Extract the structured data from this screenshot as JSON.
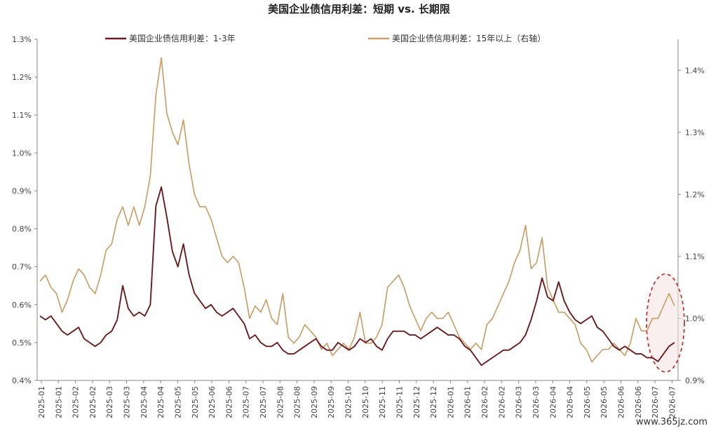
{
  "chart_data": {
    "type": "line",
    "title": "美国企业债信用利差：短期 vs. 长期限",
    "yaxis_left": {
      "min": 0.4,
      "max": 1.3,
      "ticks": [
        "0.4%",
        "0.5%",
        "0.6%",
        "0.7%",
        "0.8%",
        "0.9%",
        "1.0%",
        "1.1%",
        "1.2%",
        "1.3%"
      ]
    },
    "yaxis_right": {
      "min": 0.9,
      "max": 1.45,
      "ticks": [
        "0.9%",
        "1.0%",
        "1.1%",
        "1.2%",
        "1.3%",
        "1.4%"
      ]
    },
    "x_tick_labels": [
      "2025-01",
      "2025-01",
      "2025-02",
      "2025-02",
      "2025-03",
      "2025-03",
      "2025-04",
      "2025-04",
      "2025-05",
      "2025-05",
      "2025-06",
      "2025-06",
      "2025-07",
      "2025-07",
      "2025-08",
      "2025-08",
      "2025-09",
      "2025-09",
      "2025-10",
      "2025-10",
      "2025-11",
      "2025-11",
      "2025-12",
      "2025-12",
      "2026-01",
      "2026-01",
      "2026-02",
      "2026-02",
      "2026-03",
      "2026-03",
      "2026-04",
      "2026-04",
      "2026-05",
      "2026-05",
      "2026-06",
      "2026-06",
      "2026-07",
      "2026-07"
    ],
    "series": [
      {
        "name": "美国企业债信用利差：1-3年",
        "axis": "left",
        "color": "#6b1a1f",
        "values": [
          0.57,
          0.56,
          0.57,
          0.55,
          0.53,
          0.52,
          0.53,
          0.54,
          0.51,
          0.5,
          0.49,
          0.5,
          0.52,
          0.53,
          0.56,
          0.65,
          0.59,
          0.57,
          0.58,
          0.57,
          0.6,
          0.86,
          0.91,
          0.83,
          0.74,
          0.7,
          0.76,
          0.68,
          0.63,
          0.61,
          0.59,
          0.6,
          0.58,
          0.57,
          0.58,
          0.59,
          0.57,
          0.55,
          0.51,
          0.52,
          0.5,
          0.49,
          0.49,
          0.5,
          0.48,
          0.47,
          0.47,
          0.48,
          0.49,
          0.5,
          0.51,
          0.49,
          0.48,
          0.48,
          0.5,
          0.49,
          0.48,
          0.49,
          0.51,
          0.5,
          0.51,
          0.49,
          0.48,
          0.51,
          0.53,
          0.53,
          0.53,
          0.52,
          0.52,
          0.51,
          0.52,
          0.53,
          0.54,
          0.53,
          0.52,
          0.52,
          0.51,
          0.49,
          0.48,
          0.46,
          0.44,
          0.45,
          0.46,
          0.47,
          0.48,
          0.48,
          0.49,
          0.5,
          0.52,
          0.56,
          0.61,
          0.67,
          0.62,
          0.61,
          0.66,
          0.61,
          0.58,
          0.56,
          0.55,
          0.56,
          0.57,
          0.54,
          0.53,
          0.51,
          0.49,
          0.48,
          0.49,
          0.48,
          0.47,
          0.47,
          0.46,
          0.46,
          0.45,
          0.47,
          0.49,
          0.5
        ]
      },
      {
        "name": "美国企业债信用利差：15年以上（右轴）",
        "axis": "right",
        "color": "#c9a06a",
        "values": [
          1.06,
          1.07,
          1.05,
          1.04,
          1.01,
          1.03,
          1.06,
          1.08,
          1.07,
          1.05,
          1.04,
          1.07,
          1.11,
          1.12,
          1.16,
          1.18,
          1.15,
          1.18,
          1.15,
          1.18,
          1.23,
          1.36,
          1.42,
          1.33,
          1.3,
          1.28,
          1.32,
          1.25,
          1.2,
          1.18,
          1.18,
          1.16,
          1.13,
          1.1,
          1.09,
          1.1,
          1.09,
          1.05,
          1.0,
          1.02,
          1.01,
          1.03,
          1.0,
          0.99,
          1.04,
          0.97,
          0.96,
          0.97,
          0.99,
          0.98,
          0.97,
          0.95,
          0.96,
          0.94,
          0.95,
          0.96,
          0.95,
          0.97,
          1.01,
          0.96,
          0.96,
          0.97,
          0.99,
          1.05,
          1.06,
          1.07,
          1.05,
          1.02,
          1.0,
          0.98,
          1.0,
          1.01,
          1.0,
          1.0,
          1.01,
          0.99,
          0.97,
          0.96,
          0.95,
          0.96,
          0.95,
          0.99,
          1.0,
          1.02,
          1.04,
          1.06,
          1.09,
          1.11,
          1.15,
          1.08,
          1.09,
          1.13,
          1.05,
          1.03,
          1.01,
          1.01,
          1.0,
          0.99,
          0.96,
          0.95,
          0.93,
          0.94,
          0.95,
          0.95,
          0.96,
          0.95,
          0.94,
          0.96,
          1.0,
          0.98,
          0.98,
          1.0,
          1.0,
          1.02,
          1.04,
          1.02
        ]
      }
    ],
    "legend": "top",
    "grid": false,
    "annotation": "dashed red ellipse highlighting latest data (2026-06 to 2026-07)"
  },
  "watermark": "www.365jz.com"
}
